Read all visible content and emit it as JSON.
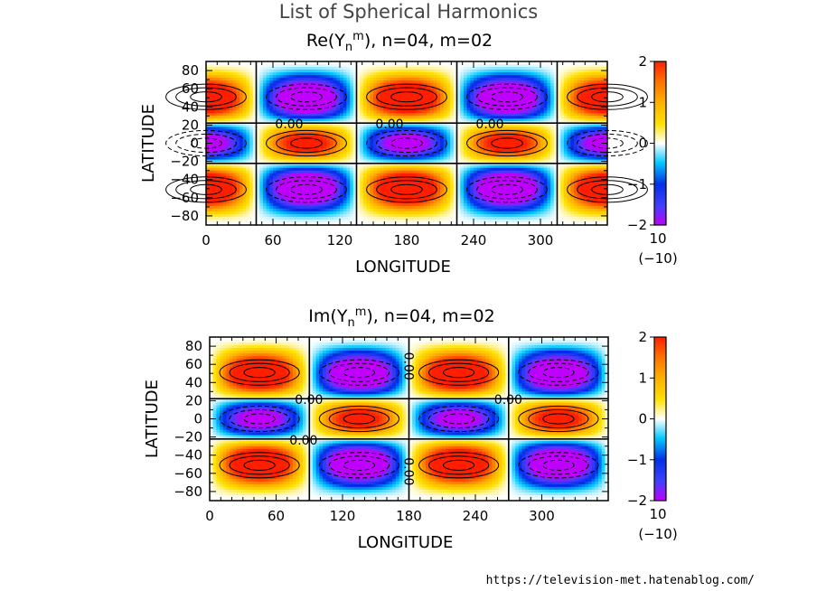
{
  "page": {
    "title": "List of Spherical Harmonics",
    "source": "https://television-met.hatenablog.com/"
  },
  "chart_data": [
    {
      "type": "heatmap",
      "title_prefix": "Re(Y",
      "title_sub": "n",
      "title_sup": "m",
      "title_suffix": "), n=04, m=02",
      "xlabel": "LONGITUDE",
      "ylabel": "LATITUDE",
      "xlim": [
        0,
        360
      ],
      "ylim": [
        -90,
        90
      ],
      "x_ticks": [
        "0",
        "60",
        "120",
        "180",
        "240",
        "300"
      ],
      "y_ticks": [
        "80",
        "60",
        "40",
        "20",
        "0",
        "−20",
        "−40",
        "−60",
        "−80"
      ],
      "function": "cos(2*lon) * P4^2(sin(lat))",
      "zero_line_lons": [
        45,
        135,
        225,
        315
      ],
      "zero_line_lats": [
        -22.2,
        22.2
      ],
      "contour_label": "0.00",
      "contour_label_lons": [
        60,
        150,
        240
      ],
      "colorbar": {
        "ticks": [
          "2",
          "1",
          "0",
          "−1",
          "−2"
        ],
        "range": [
          -2,
          2
        ],
        "scale_factor": "10",
        "scale_exponent": "(−10)"
      }
    },
    {
      "type": "heatmap",
      "title_prefix": "Im(Y",
      "title_sub": "n",
      "title_sup": "m",
      "title_suffix": "), n=04, m=02",
      "xlabel": "LONGITUDE",
      "ylabel": "LATITUDE",
      "xlim": [
        0,
        360
      ],
      "ylim": [
        -90,
        90
      ],
      "x_ticks": [
        "0",
        "60",
        "120",
        "180",
        "240",
        "300"
      ],
      "y_ticks": [
        "80",
        "60",
        "40",
        "20",
        "0",
        "−20",
        "−40",
        "−60",
        "−80"
      ],
      "function": "sin(2*lon) * P4^2(sin(lat))",
      "zero_line_lons": [
        90,
        180,
        270
      ],
      "zero_line_lats": [
        -22.2,
        22.2
      ],
      "contour_label": "0.00",
      "contour_label_lons": [
        75,
        255
      ],
      "contour_label_vertical_lon": 180,
      "colorbar": {
        "ticks": [
          "2",
          "1",
          "0",
          "−1",
          "−2"
        ],
        "range": [
          -2,
          2
        ],
        "scale_factor": "10",
        "scale_exponent": "(−10)"
      }
    }
  ]
}
